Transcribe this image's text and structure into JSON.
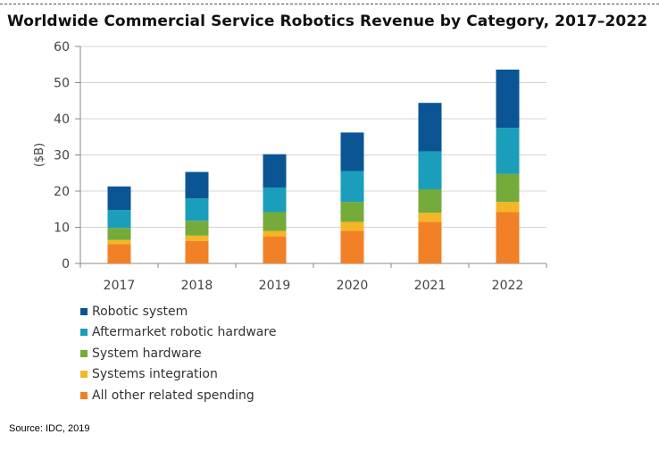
{
  "title": "Worldwide Commercial Service Robotics Revenue by Category, 2017–2022",
  "source": "Source: IDC, 2019",
  "chart_data": {
    "type": "bar",
    "stacked": true,
    "title": "Worldwide Commercial Service Robotics Revenue by Category, 2017–2022",
    "xlabel": "",
    "ylabel": "($B)",
    "ylim": [
      0,
      60
    ],
    "yticks": [
      "0",
      "10",
      "20",
      "30",
      "40",
      "50",
      "60"
    ],
    "grid": true,
    "legend_position": "bottom-left",
    "categories": [
      "2017",
      "2018",
      "2019",
      "2020",
      "2021",
      "2022"
    ],
    "series": [
      {
        "name": "All other related spending",
        "color": "#F28026",
        "values": [
          5.3,
          6.2,
          7.5,
          9.0,
          11.5,
          14.2
        ]
      },
      {
        "name": "Systems integration",
        "color": "#F4B626",
        "values": [
          1.2,
          1.5,
          1.5,
          2.5,
          2.5,
          2.8
        ]
      },
      {
        "name": "System hardware",
        "color": "#74AB3B",
        "values": [
          3.3,
          4.1,
          5.2,
          5.5,
          6.5,
          7.8
        ]
      },
      {
        "name": "Aftermarket robotic hardware",
        "color": "#1A9EBB",
        "values": [
          5.0,
          6.2,
          6.8,
          8.5,
          10.5,
          12.7
        ]
      },
      {
        "name": "Robotic system",
        "color": "#0B5594",
        "values": [
          6.5,
          7.3,
          9.2,
          10.7,
          13.4,
          16.1
        ]
      }
    ]
  }
}
